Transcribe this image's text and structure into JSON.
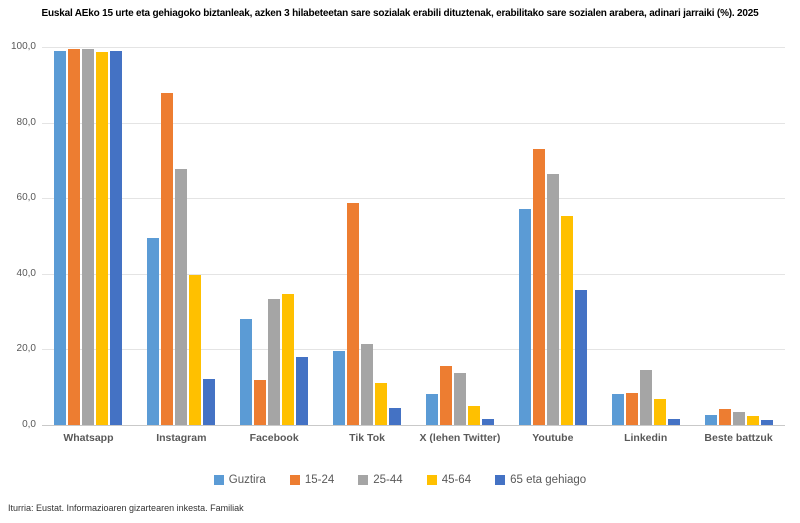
{
  "source_note": "Iturria: Eustat. Informazioaren gizartearen inkesta. Familiak",
  "chart_data": {
    "type": "bar",
    "title": "Euskal AEko 15 urte eta gehiagoko biztanleak, azken 3 hilabeteetan sare sozialak erabili dituztenak, erabilitako sare sozialen arabera, adinari jarraiki (%). 2025",
    "categories": [
      "Whatsapp",
      "Instagram",
      "Facebook",
      "Tik Tok",
      "X (lehen Twitter)",
      "Youtube",
      "Linkedin",
      "Beste battzuk"
    ],
    "series": [
      {
        "name": "Guztira",
        "color": "#5B9BD5",
        "values": [
          98.9,
          49.4,
          28.0,
          19.6,
          8.3,
          57.2,
          8.2,
          2.7
        ]
      },
      {
        "name": "15-24",
        "color": "#ED7D31",
        "values": [
          99.6,
          87.9,
          11.9,
          58.7,
          15.5,
          72.9,
          8.5,
          4.2
        ]
      },
      {
        "name": "25-44",
        "color": "#A5A5A5",
        "values": [
          99.4,
          67.8,
          33.3,
          21.4,
          13.7,
          66.4,
          14.6,
          3.4
        ]
      },
      {
        "name": "45-64",
        "color": "#FFC000",
        "values": [
          98.8,
          39.6,
          34.6,
          11.1,
          4.9,
          55.2,
          6.9,
          2.5
        ]
      },
      {
        "name": "65 eta gehiago",
        "color": "#4472C4",
        "values": [
          98.9,
          12.2,
          18.0,
          4.5,
          1.5,
          35.6,
          1.5,
          1.2
        ]
      }
    ],
    "ylim": [
      0,
      100
    ],
    "yticks": [
      {
        "label": "100,0",
        "value": 100
      },
      {
        "label": "80,0",
        "value": 80
      },
      {
        "label": "60,0",
        "value": 60
      },
      {
        "label": "40,0",
        "value": 40
      },
      {
        "label": "20,0",
        "value": 20
      },
      {
        "label": "0,0",
        "value": 0
      }
    ],
    "grid": true,
    "legend_position": "bottom"
  }
}
